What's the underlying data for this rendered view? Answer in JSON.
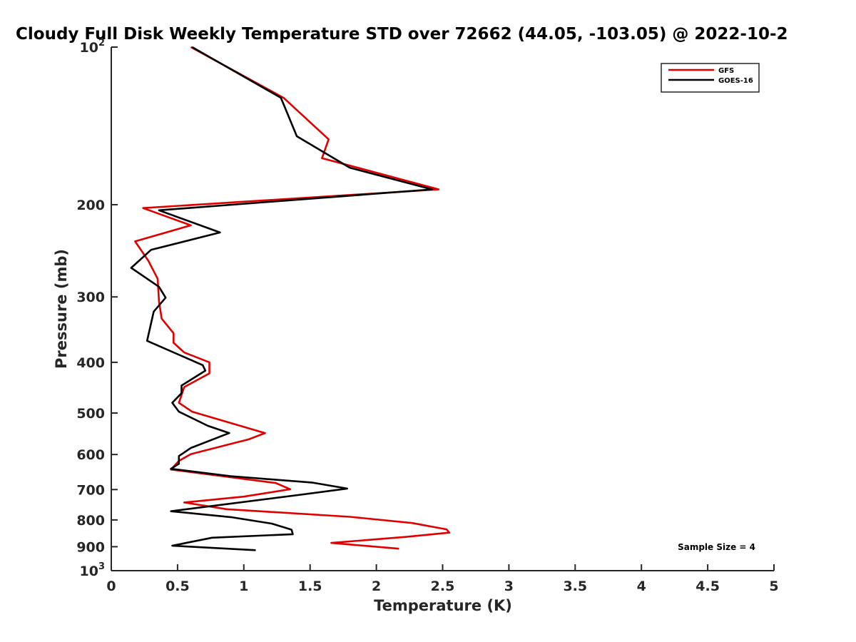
{
  "chart_data": {
    "type": "line",
    "title": "Cloudy Full Disk Weekly Temperature STD over 72662 (44.05, -103.05) @ 2022-10-2",
    "xlabel": "Temperature (K)",
    "ylabel": "Pressure (mb)",
    "xlim": [
      0,
      5
    ],
    "ylim": [
      1000,
      100
    ],
    "yscale": "log",
    "y_reversed": true,
    "x_ticks": [
      0,
      0.5,
      1,
      1.5,
      2,
      2.5,
      3,
      3.5,
      4,
      4.5,
      5
    ],
    "x_tick_labels": [
      "0",
      "0.5",
      "1",
      "1.5",
      "2",
      "2.5",
      "3",
      "3.5",
      "4",
      "4.5",
      "5"
    ],
    "y_ticks": [
      100,
      200,
      300,
      400,
      500,
      600,
      700,
      800,
      900,
      1000
    ],
    "y_tick_labels": [
      {
        "base": "10",
        "exp": "2"
      },
      {
        "base": "200",
        "exp": ""
      },
      {
        "base": "300",
        "exp": ""
      },
      {
        "base": "400",
        "exp": ""
      },
      {
        "base": "500",
        "exp": ""
      },
      {
        "base": "600",
        "exp": ""
      },
      {
        "base": "700",
        "exp": ""
      },
      {
        "base": "800",
        "exp": ""
      },
      {
        "base": "900",
        "exp": ""
      },
      {
        "base": "10",
        "exp": "3"
      }
    ],
    "grid": false,
    "legend_position": "top-right",
    "annotation": "Sample Size = 4",
    "series": [
      {
        "name": "GFS",
        "color": "#e00000",
        "points": [
          [
            0.6,
            100
          ],
          [
            1.3,
            125
          ],
          [
            1.64,
            150
          ],
          [
            1.59,
            163
          ],
          [
            2.47,
            187
          ],
          [
            0.24,
            203
          ],
          [
            0.6,
            219
          ],
          [
            0.18,
            235
          ],
          [
            0.28,
            256
          ],
          [
            0.35,
            277
          ],
          [
            0.36,
            306
          ],
          [
            0.38,
            330
          ],
          [
            0.47,
            352
          ],
          [
            0.47,
            367
          ],
          [
            0.55,
            383
          ],
          [
            0.74,
            400
          ],
          [
            0.74,
            420
          ],
          [
            0.55,
            446
          ],
          [
            0.51,
            478
          ],
          [
            0.61,
            497
          ],
          [
            1.16,
            546
          ],
          [
            1.04,
            561
          ],
          [
            0.6,
            599
          ],
          [
            0.51,
            617
          ],
          [
            0.45,
            641
          ],
          [
            1.24,
            680
          ],
          [
            1.35,
            699
          ],
          [
            1.0,
            722
          ],
          [
            0.55,
            741
          ],
          [
            0.87,
            763
          ],
          [
            1.8,
            789
          ],
          [
            2.27,
            811
          ],
          [
            2.53,
            834
          ],
          [
            2.55,
            846
          ],
          [
            2.22,
            862
          ],
          [
            1.66,
            885
          ],
          [
            2.17,
            908
          ]
        ]
      },
      {
        "name": "GOES-16",
        "color": "#000000",
        "points": [
          [
            0.61,
            100
          ],
          [
            1.28,
            125
          ],
          [
            1.4,
            148
          ],
          [
            1.8,
            170
          ],
          [
            2.42,
            187
          ],
          [
            0.36,
            205
          ],
          [
            0.82,
            226
          ],
          [
            0.3,
            244
          ],
          [
            0.15,
            264
          ],
          [
            0.36,
            287
          ],
          [
            0.41,
            301
          ],
          [
            0.32,
            320
          ],
          [
            0.27,
            364
          ],
          [
            0.69,
            405
          ],
          [
            0.71,
            415
          ],
          [
            0.53,
            443
          ],
          [
            0.53,
            458
          ],
          [
            0.46,
            478
          ],
          [
            0.51,
            497
          ],
          [
            0.73,
            529
          ],
          [
            0.89,
            546
          ],
          [
            0.6,
            583
          ],
          [
            0.51,
            604
          ],
          [
            0.51,
            625
          ],
          [
            0.45,
            639
          ],
          [
            0.9,
            660
          ],
          [
            1.52,
            679
          ],
          [
            1.78,
            697
          ],
          [
            1.43,
            716
          ],
          [
            0.45,
            770
          ],
          [
            0.9,
            790
          ],
          [
            1.21,
            813
          ],
          [
            1.36,
            835
          ],
          [
            1.37,
            852
          ],
          [
            0.76,
            865
          ],
          [
            0.46,
            896
          ],
          [
            1.09,
            914
          ]
        ]
      }
    ]
  }
}
